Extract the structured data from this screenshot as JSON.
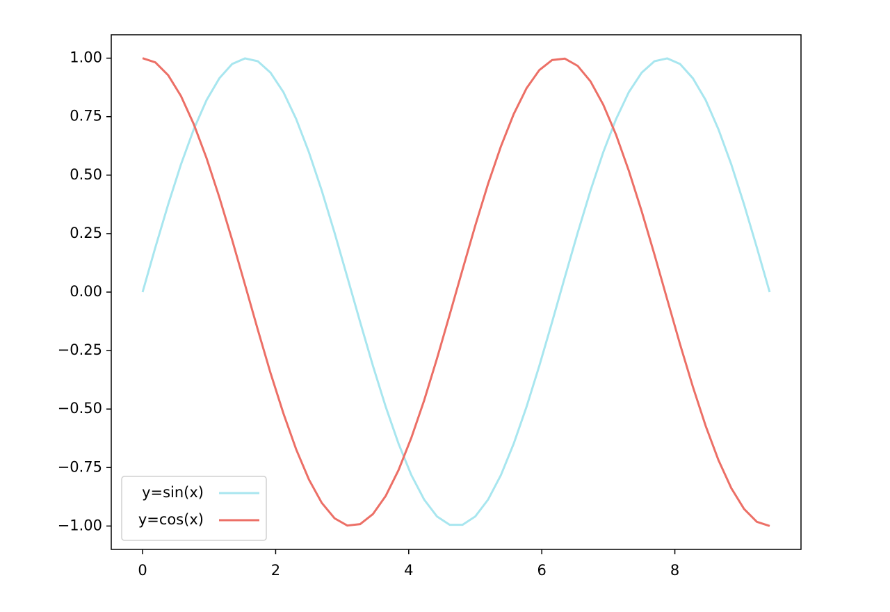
{
  "chart_data": {
    "type": "line",
    "x": [
      0,
      0.192,
      0.385,
      0.577,
      0.769,
      0.962,
      1.154,
      1.346,
      1.539,
      1.731,
      1.923,
      2.116,
      2.308,
      2.5,
      2.693,
      2.885,
      3.077,
      3.27,
      3.462,
      3.655,
      3.847,
      4.039,
      4.232,
      4.424,
      4.616,
      4.809,
      5.001,
      5.193,
      5.386,
      5.578,
      5.77,
      5.963,
      6.155,
      6.347,
      6.54,
      6.732,
      6.924,
      7.117,
      7.309,
      7.501,
      7.694,
      7.886,
      8.078,
      8.271,
      8.463,
      8.655,
      8.848,
      9.04,
      9.232,
      9.425
    ],
    "series": [
      {
        "name": "y=sin(x)",
        "color": "#a8e6ef",
        "values": [
          0,
          0.191,
          0.375,
          0.546,
          0.696,
          0.821,
          0.914,
          0.975,
          0.999,
          0.987,
          0.938,
          0.855,
          0.74,
          0.598,
          0.434,
          0.254,
          0.064,
          -0.128,
          -0.315,
          -0.491,
          -0.648,
          -0.782,
          -0.887,
          -0.959,
          -0.995,
          -0.995,
          -0.959,
          -0.887,
          -0.782,
          -0.648,
          -0.491,
          -0.315,
          -0.128,
          0.064,
          0.254,
          0.434,
          0.598,
          0.74,
          0.855,
          0.938,
          0.987,
          0.999,
          0.975,
          0.914,
          0.821,
          0.696,
          0.546,
          0.375,
          0.191,
          0
        ]
      },
      {
        "name": "y=cos(x)",
        "color": "#ec6f66",
        "values": [
          1,
          0.982,
          0.927,
          0.838,
          0.718,
          0.572,
          0.405,
          0.223,
          0.032,
          -0.16,
          -0.346,
          -0.518,
          -0.672,
          -0.801,
          -0.901,
          -0.967,
          -0.998,
          -0.992,
          -0.949,
          -0.871,
          -0.761,
          -0.623,
          -0.463,
          -0.285,
          -0.096,
          0.096,
          0.285,
          0.463,
          0.623,
          0.761,
          0.871,
          0.949,
          0.992,
          0.998,
          0.967,
          0.901,
          0.801,
          0.672,
          0.518,
          0.346,
          0.16,
          -0.032,
          -0.223,
          -0.405,
          -0.572,
          -0.718,
          -0.838,
          -0.927,
          -0.982,
          -1
        ]
      }
    ],
    "xlim": [
      -0.471,
      9.896
    ],
    "xticks": [
      0,
      2,
      4,
      6,
      8
    ],
    "ylim": [
      -1.1,
      1.1
    ],
    "yticks": [
      {
        "value": -1,
        "label": "−1.00"
      },
      {
        "value": -0.75,
        "label": "−0.75"
      },
      {
        "value": -0.5,
        "label": "−0.50"
      },
      {
        "value": -0.25,
        "label": "−0.25"
      },
      {
        "value": 0,
        "label": "0.00"
      },
      {
        "value": 0.25,
        "label": "0.25"
      },
      {
        "value": 0.5,
        "label": "0.50"
      },
      {
        "value": 0.75,
        "label": "0.75"
      },
      {
        "value": 1,
        "label": "1.00"
      }
    ],
    "grid": false,
    "legend": "lower left"
  }
}
